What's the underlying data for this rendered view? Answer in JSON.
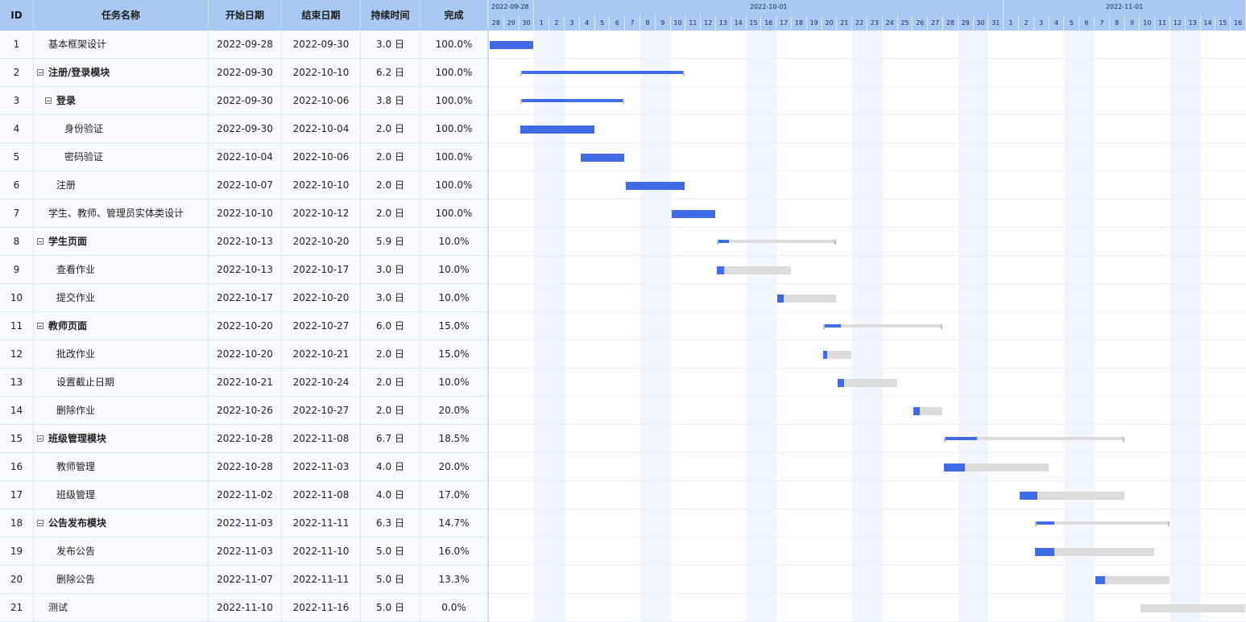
{
  "grid": {
    "columns": {
      "id": "ID",
      "name": "任务名称",
      "start": "开始日期",
      "end": "结束日期",
      "duration": "持续时间",
      "progress": "完成"
    },
    "rows": [
      {
        "id": "1",
        "name": "基本框架设计",
        "start": "2022-09-28",
        "end": "2022-09-30",
        "duration": "3.0 日",
        "progress": "100.0%",
        "progress_value": 1.0,
        "level": 0,
        "parent": false
      },
      {
        "id": "2",
        "name": "注册/登录模块",
        "start": "2022-09-30",
        "end": "2022-10-10",
        "duration": "6.2 日",
        "progress": "100.0%",
        "progress_value": 1.0,
        "level": 0,
        "parent": true
      },
      {
        "id": "3",
        "name": "登录",
        "start": "2022-09-30",
        "end": "2022-10-06",
        "duration": "3.8 日",
        "progress": "100.0%",
        "progress_value": 1.0,
        "level": 1,
        "parent": true
      },
      {
        "id": "4",
        "name": "身份验证",
        "start": "2022-09-30",
        "end": "2022-10-04",
        "duration": "2.0 日",
        "progress": "100.0%",
        "progress_value": 1.0,
        "level": 2,
        "parent": false
      },
      {
        "id": "5",
        "name": "密码验证",
        "start": "2022-10-04",
        "end": "2022-10-06",
        "duration": "2.0 日",
        "progress": "100.0%",
        "progress_value": 1.0,
        "level": 2,
        "parent": false
      },
      {
        "id": "6",
        "name": "注册",
        "start": "2022-10-07",
        "end": "2022-10-10",
        "duration": "2.0 日",
        "progress": "100.0%",
        "progress_value": 1.0,
        "level": 1,
        "parent": false
      },
      {
        "id": "7",
        "name": "学生、教师、管理员实体类设计",
        "start": "2022-10-10",
        "end": "2022-10-12",
        "duration": "2.0 日",
        "progress": "100.0%",
        "progress_value": 1.0,
        "level": 0,
        "parent": false
      },
      {
        "id": "8",
        "name": "学生页面",
        "start": "2022-10-13",
        "end": "2022-10-20",
        "duration": "5.9 日",
        "progress": "10.0%",
        "progress_value": 0.1,
        "level": 0,
        "parent": true
      },
      {
        "id": "9",
        "name": "查看作业",
        "start": "2022-10-13",
        "end": "2022-10-17",
        "duration": "3.0 日",
        "progress": "10.0%",
        "progress_value": 0.1,
        "level": 1,
        "parent": false
      },
      {
        "id": "10",
        "name": "提交作业",
        "start": "2022-10-17",
        "end": "2022-10-20",
        "duration": "3.0 日",
        "progress": "10.0%",
        "progress_value": 0.1,
        "level": 1,
        "parent": false
      },
      {
        "id": "11",
        "name": "教师页面",
        "start": "2022-10-20",
        "end": "2022-10-27",
        "duration": "6.0 日",
        "progress": "15.0%",
        "progress_value": 0.15,
        "level": 0,
        "parent": true
      },
      {
        "id": "12",
        "name": "批改作业",
        "start": "2022-10-20",
        "end": "2022-10-21",
        "duration": "2.0 日",
        "progress": "15.0%",
        "progress_value": 0.15,
        "level": 1,
        "parent": false
      },
      {
        "id": "13",
        "name": "设置截止日期",
        "start": "2022-10-21",
        "end": "2022-10-24",
        "duration": "2.0 日",
        "progress": "10.0%",
        "progress_value": 0.1,
        "level": 1,
        "parent": false
      },
      {
        "id": "14",
        "name": "删除作业",
        "start": "2022-10-26",
        "end": "2022-10-27",
        "duration": "2.0 日",
        "progress": "20.0%",
        "progress_value": 0.2,
        "level": 1,
        "parent": false
      },
      {
        "id": "15",
        "name": "班级管理模块",
        "start": "2022-10-28",
        "end": "2022-11-08",
        "duration": "6.7 日",
        "progress": "18.5%",
        "progress_value": 0.185,
        "level": 0,
        "parent": true
      },
      {
        "id": "16",
        "name": "教师管理",
        "start": "2022-10-28",
        "end": "2022-11-03",
        "duration": "4.0 日",
        "progress": "20.0%",
        "progress_value": 0.2,
        "level": 1,
        "parent": false
      },
      {
        "id": "17",
        "name": "班级管理",
        "start": "2022-11-02",
        "end": "2022-11-08",
        "duration": "4.0 日",
        "progress": "17.0%",
        "progress_value": 0.17,
        "level": 1,
        "parent": false
      },
      {
        "id": "18",
        "name": "公告发布模块",
        "start": "2022-11-03",
        "end": "2022-11-11",
        "duration": "6.3 日",
        "progress": "14.7%",
        "progress_value": 0.147,
        "level": 0,
        "parent": true
      },
      {
        "id": "19",
        "name": "发布公告",
        "start": "2022-11-03",
        "end": "2022-11-10",
        "duration": "5.0 日",
        "progress": "16.0%",
        "progress_value": 0.16,
        "level": 1,
        "parent": false
      },
      {
        "id": "20",
        "name": "删除公告",
        "start": "2022-11-07",
        "end": "2022-11-11",
        "duration": "5.0 日",
        "progress": "13.3%",
        "progress_value": 0.133,
        "level": 1,
        "parent": false
      },
      {
        "id": "21",
        "name": "测试",
        "start": "2022-11-10",
        "end": "2022-11-16",
        "duration": "5.0 日",
        "progress": "0.0%",
        "progress_value": 0.0,
        "level": 0,
        "parent": false
      }
    ]
  },
  "timeline": {
    "months": [
      "2022-09-28",
      "2022-10-01",
      "2022-11-01"
    ],
    "days": [
      "28",
      "29",
      "30",
      "1",
      "2",
      "3",
      "4",
      "5",
      "6",
      "7",
      "8",
      "9",
      "10",
      "11",
      "12",
      "13",
      "14",
      "15",
      "16",
      "17",
      "18",
      "19",
      "20",
      "21",
      "22",
      "23",
      "24",
      "25",
      "26",
      "27",
      "28",
      "29",
      "30",
      "31",
      "1",
      "2",
      "3",
      "4",
      "5",
      "6",
      "7",
      "8",
      "9",
      "10",
      "11",
      "12",
      "13",
      "14",
      "15",
      "16"
    ]
  },
  "colors": {
    "header": "#a9c9f5",
    "progress": "#3f6be6",
    "remaining": "#dcdcdc",
    "weekend": "#f1f6fe"
  }
}
